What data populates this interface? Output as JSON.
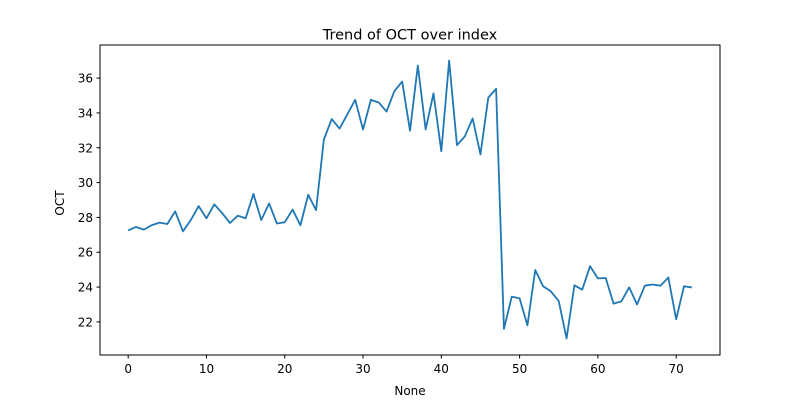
{
  "chart_data": {
    "type": "line",
    "title": "Trend of OCT over index",
    "xlabel": "None",
    "ylabel": "OCT",
    "xlim": [
      -3.6,
      75.6
    ],
    "ylim": [
      20.1,
      37.9
    ],
    "xticks": [
      0,
      10,
      20,
      30,
      40,
      50,
      60,
      70
    ],
    "yticks": [
      22,
      24,
      26,
      28,
      30,
      32,
      34,
      36
    ],
    "grid": false,
    "series": [
      {
        "color": "#1f77b4",
        "x": [
          0,
          1,
          2,
          3,
          4,
          5,
          6,
          7,
          8,
          9,
          10,
          11,
          12,
          13,
          14,
          15,
          16,
          17,
          18,
          19,
          20,
          21,
          22,
          23,
          24,
          25,
          26,
          27,
          28,
          29,
          30,
          31,
          32,
          33,
          34,
          35,
          36,
          37,
          38,
          39,
          40,
          41,
          42,
          43,
          44,
          45,
          46,
          47,
          48,
          49,
          50,
          51,
          52,
          53,
          54,
          55,
          56,
          57,
          58,
          59,
          60,
          61,
          62,
          63,
          64,
          65,
          66,
          67,
          68,
          69,
          70,
          71,
          72
        ],
        "values": [
          27.25,
          27.45,
          27.3,
          27.55,
          27.7,
          27.62,
          28.35,
          27.2,
          27.85,
          28.65,
          27.95,
          28.75,
          28.25,
          27.68,
          28.1,
          27.95,
          29.35,
          27.85,
          28.8,
          27.65,
          27.72,
          28.45,
          27.55,
          29.3,
          28.42,
          32.48,
          33.65,
          33.1,
          33.92,
          34.75,
          33.05,
          34.75,
          34.6,
          34.08,
          35.25,
          35.8,
          32.98,
          36.72,
          33.05,
          35.12,
          31.8,
          37.0,
          32.15,
          32.65,
          33.68,
          31.62,
          34.88,
          35.38,
          21.6,
          23.45,
          23.35,
          21.8,
          24.98,
          24.05,
          23.75,
          23.2,
          21.05,
          24.1,
          23.85,
          25.2,
          24.5,
          24.52,
          23.05,
          23.18,
          23.98,
          23.0,
          24.08,
          24.15,
          24.08,
          24.55,
          22.15,
          24.05,
          23.98
        ]
      }
    ]
  }
}
